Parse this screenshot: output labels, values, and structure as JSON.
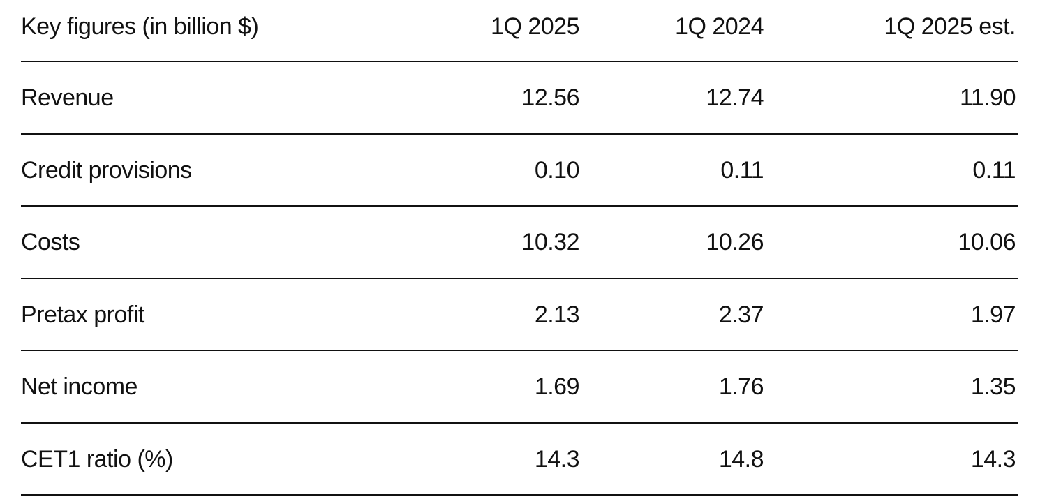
{
  "table": {
    "header": [
      "Key figures (in billion $)",
      "1Q 2025",
      "1Q 2024",
      "1Q 2025 est."
    ],
    "rows": [
      [
        "Revenue",
        "12.56",
        "12.74",
        "11.90"
      ],
      [
        "Credit provisions",
        "0.10",
        "0.11",
        "0.11"
      ],
      [
        "Costs",
        "10.32",
        "10.26",
        "10.06"
      ],
      [
        "Pretax profit",
        "2.13",
        "2.37",
        "1.97"
      ],
      [
        "Net income",
        "1.69",
        "1.76",
        "1.35"
      ],
      [
        "CET1 ratio (%)",
        "14.3",
        "14.8",
        "14.3"
      ]
    ]
  }
}
